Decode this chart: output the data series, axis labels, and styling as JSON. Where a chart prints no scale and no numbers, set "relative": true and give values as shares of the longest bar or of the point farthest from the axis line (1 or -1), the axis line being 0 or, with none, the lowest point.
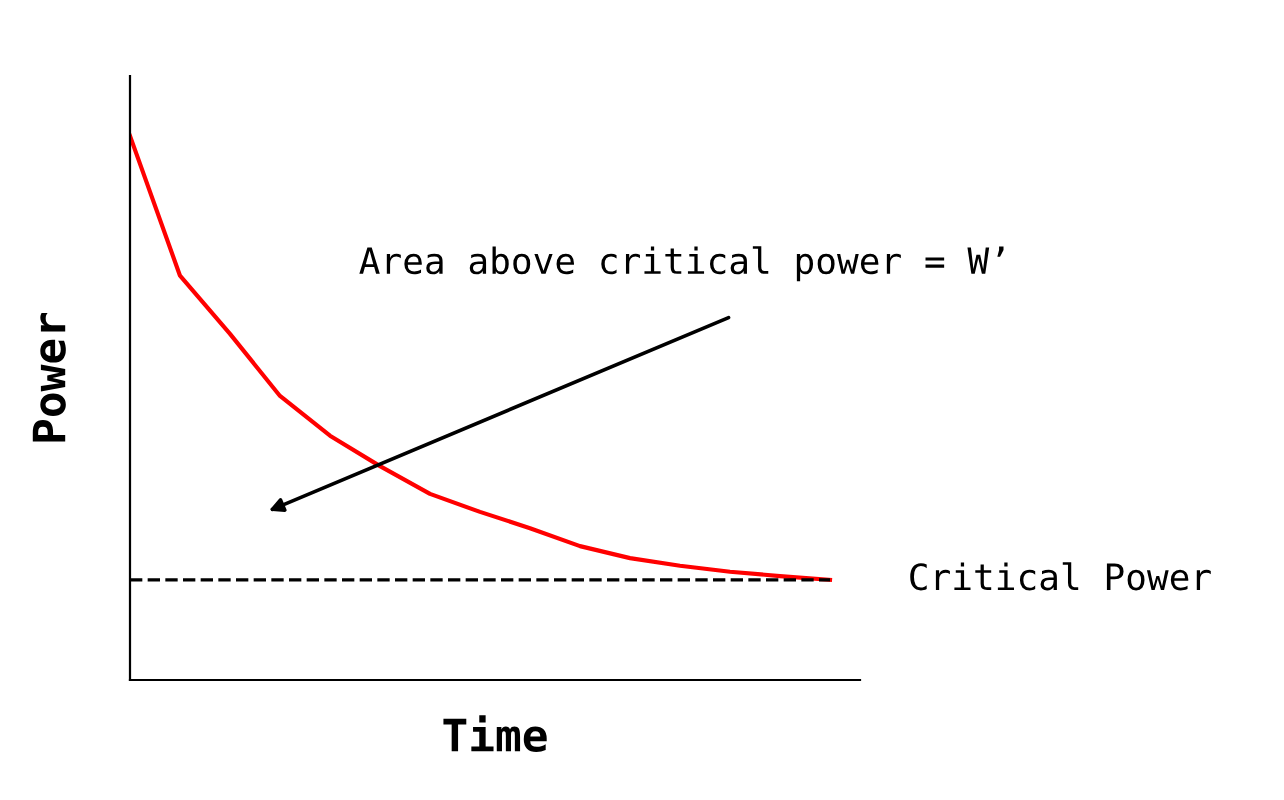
{
  "chart_data": {
    "type": "line",
    "relative": true,
    "xlabel": "Time",
    "ylabel": "Power",
    "categories": [
      null,
      null,
      null,
      null,
      null,
      null,
      null,
      null,
      null,
      null,
      null,
      null,
      null,
      null,
      null
    ],
    "series": [
      {
        "color": "#ff0000",
        "values": [
          1,
          0.743,
          0.636,
          0.522,
          0.449,
          0.393,
          0.342,
          0.309,
          0.279,
          0.246,
          0.224,
          0.21,
          0.199,
          0.191,
          0.184
        ]
      },
      {
        "name": "Critical Power",
        "color": "#000000",
        "line_style": "dashed",
        "values": [
          0.184,
          0.184,
          0.184,
          0.184,
          0.184,
          0.184,
          0.184,
          0.184,
          0.184,
          0.184,
          0.184,
          0.184,
          0.184,
          0.184,
          0.184
        ]
      }
    ],
    "annotations": [
      "Area above critical power = W’"
    ]
  }
}
